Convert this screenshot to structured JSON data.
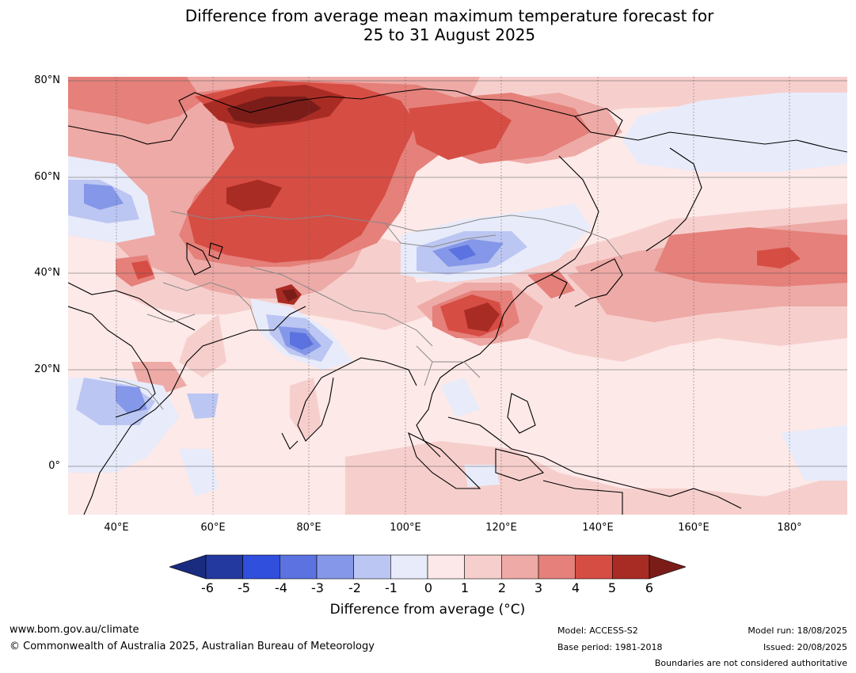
{
  "title_line1": "Difference from average mean maximum temperature forecast for",
  "title_line2": "25 to 31 August 2025",
  "lat_labels": [
    "80°N",
    "60°N",
    "40°N",
    "20°N",
    "0°"
  ],
  "lon_labels": [
    "40°E",
    "60°E",
    "80°E",
    "100°E",
    "120°E",
    "140°E",
    "160°E",
    "180°"
  ],
  "colorbar": {
    "ticks": [
      "-6",
      "-5",
      "-4",
      "-3",
      "-2",
      "-1",
      "0",
      "1",
      "2",
      "3",
      "4",
      "5",
      "6"
    ],
    "colors": [
      "#24399f",
      "#2f4fdc",
      "#5b72e0",
      "#8597e8",
      "#bcc6f2",
      "#e8ebfa",
      "#fce8e8",
      "#f6cfcd",
      "#eeaaa6",
      "#e5807a",
      "#d64d44",
      "#a92c24"
    ],
    "under_color": "#1a2c80",
    "over_color": "#7a1d19",
    "label": "Difference from average (°C)"
  },
  "footer": {
    "url": "www.bom.gov.au/climate",
    "copyright": "© Commonwealth of Australia 2025, Australian Bureau of Meteorology",
    "model": "Model: ACCESS-S2",
    "base_period": "Base period: 1981-2018",
    "model_run": "Model run: 18/08/2025",
    "issued": "Issued: 20/08/2025",
    "disclaimer": "Boundaries are not considered authoritative"
  }
}
